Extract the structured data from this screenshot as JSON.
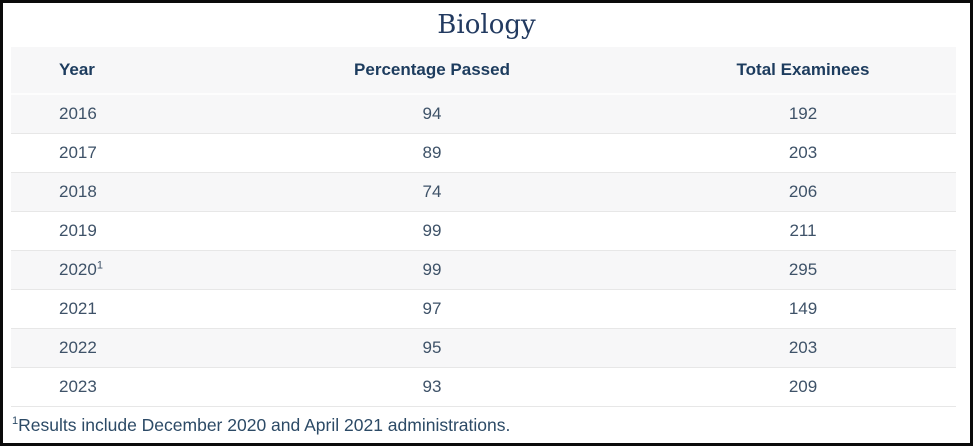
{
  "window": {
    "title_label": "Biology"
  },
  "table": {
    "columns": [
      {
        "key": "year",
        "label": "Year",
        "class": "col-year"
      },
      {
        "key": "percentage",
        "label": "Percentage Passed",
        "class": "col-percentage"
      },
      {
        "key": "total",
        "label": "Total Examinees",
        "class": "col-total"
      }
    ],
    "rows": [
      {
        "year": "2016",
        "year_sup": "",
        "percentage": "94",
        "total": "192"
      },
      {
        "year": "2017",
        "year_sup": "",
        "percentage": "89",
        "total": "203"
      },
      {
        "year": "2018",
        "year_sup": "",
        "percentage": "74",
        "total": "206"
      },
      {
        "year": "2019",
        "year_sup": "",
        "percentage": "99",
        "total": "211"
      },
      {
        "year": "2020",
        "year_sup": "1",
        "percentage": "99",
        "total": "295"
      },
      {
        "year": "2021",
        "year_sup": "",
        "percentage": "97",
        "total": "149"
      },
      {
        "year": "2022",
        "year_sup": "",
        "percentage": "95",
        "total": "203"
      },
      {
        "year": "2023",
        "year_sup": "",
        "percentage": "93",
        "total": "209"
      }
    ]
  },
  "footnote": {
    "marker": "1",
    "text": "Results include December 2020 and April 2021 administrations."
  },
  "colors": {
    "frame_border": "#0b0b0b",
    "title_text": "#223a60",
    "header_text": "#1d3c5e",
    "body_text": "#3e5268",
    "footnote_text": "#2c4a66",
    "stripe_background": "#f7f7f8",
    "row_divider": "#e7e7e7"
  },
  "chart_data": {
    "type": "table",
    "title": "Biology",
    "categories": [
      "2016",
      "2017",
      "2018",
      "2019",
      "2020",
      "2021",
      "2022",
      "2023"
    ],
    "series": [
      {
        "name": "Percentage Passed",
        "values": [
          94,
          89,
          74,
          99,
          99,
          97,
          95,
          93
        ]
      },
      {
        "name": "Total Examinees",
        "values": [
          192,
          203,
          206,
          211,
          295,
          149,
          203,
          209
        ]
      }
    ],
    "annotations": [
      "Year 2020 carries footnote 1: Results include December 2020 and April 2021 administrations."
    ],
    "layout": {
      "row_striping": true,
      "header_background": "#f7f7f8"
    }
  }
}
